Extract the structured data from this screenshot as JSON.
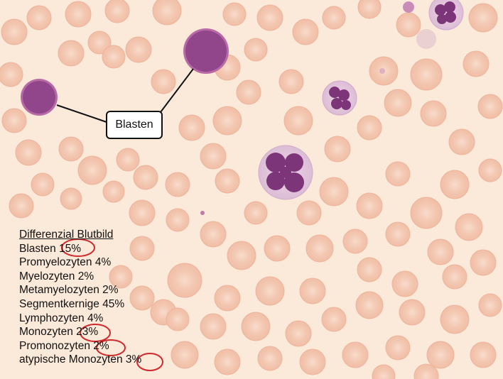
{
  "annotation": {
    "label": "Blasten"
  },
  "differential": {
    "title": "Differenzial Blutbild",
    "rows": [
      {
        "name": "Blasten",
        "value": "15%",
        "circled": true
      },
      {
        "name": "Promyelozyten",
        "value": "4%",
        "circled": false
      },
      {
        "name": "Myelozyten",
        "value": "2%",
        "circled": false
      },
      {
        "name": "Metamyelozyten",
        "value": "2%",
        "circled": false
      },
      {
        "name": "Segmentkernige",
        "value": "45%",
        "circled": false
      },
      {
        "name": "Lymphozyten",
        "value": "4%",
        "circled": false
      },
      {
        "name": "Monozyten",
        "value": "23%",
        "circled": true
      },
      {
        "name": "Promonozyten",
        "value": "2%",
        "circled": true
      },
      {
        "name": "atypische Monozyten",
        "value": "3%",
        "circled": true
      }
    ]
  },
  "colors": {
    "background": "#fbe9d9",
    "erythrocyte": "#f1bea6",
    "nucleus": "#8a3f86",
    "highlight_circle": "#d0282c"
  }
}
